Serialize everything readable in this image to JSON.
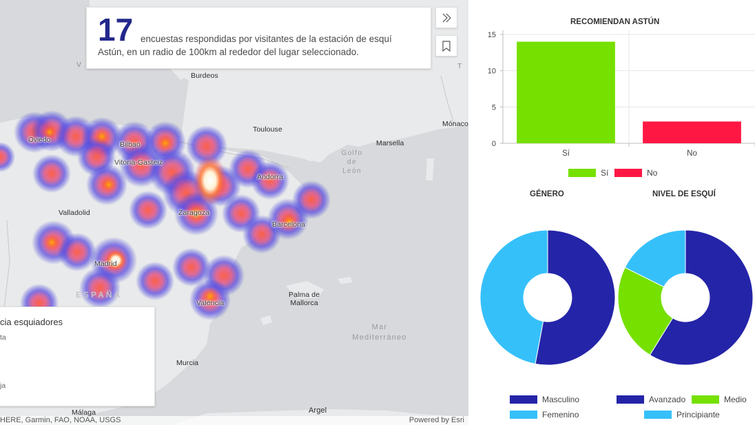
{
  "map": {
    "cities": [
      {
        "id": "burdeos",
        "label": "Burdeos"
      },
      {
        "id": "toulouse",
        "label": "Toulouse"
      },
      {
        "id": "marsella",
        "label": "Marsella"
      },
      {
        "id": "monaco",
        "label": "Mónaco"
      },
      {
        "id": "oviedo",
        "label": "Oviedo"
      },
      {
        "id": "bilbao",
        "label": "Bilbao"
      },
      {
        "id": "vitoria",
        "label": "Vitoria-Gasteiz"
      },
      {
        "id": "andorra",
        "label": "Andorra"
      },
      {
        "id": "valladolid",
        "label": "Valladolid"
      },
      {
        "id": "zaragoza",
        "label": "Zaragoza"
      },
      {
        "id": "barcelona",
        "label": "Barcelona"
      },
      {
        "id": "madrid",
        "label": "Madrid"
      },
      {
        "id": "valencia",
        "label": "València"
      },
      {
        "id": "palma",
        "label": "Palma de\nMallorca"
      },
      {
        "id": "murcia",
        "label": "Murcia"
      },
      {
        "id": "malaga",
        "label": "Málaga"
      },
      {
        "id": "argel",
        "label": "Argel"
      }
    ],
    "sea_labels": {
      "golfo": "Golfo\nde\nLeón",
      "mediterraneo": "Mar\nMediterráneo"
    },
    "country_label": "ESPAÑA",
    "edge_fragments": {
      "left": "V",
      "right": "T"
    },
    "info_card": {
      "count": "17",
      "line1": "encuestas respondidas por visitantes de la estación de esquí",
      "line2": "Astún, en un radio de 100km al rededor del lugar seleccionado."
    },
    "buttons": {
      "expand": "chevron-double-right-icon",
      "bookmark": "bookmark-icon"
    },
    "legend": {
      "title": "cia esquiadores",
      "high_label": "ta",
      "low_label": "ja"
    },
    "attribution_left": "HERE, Garmin, FAO, NOAA, USGS",
    "attribution_right": "Powered by Esri",
    "colors": {
      "land": "#e9eaeb",
      "sea": "#d7d9dc",
      "heat_low": "#3b3fd6",
      "heat_mid": "#f04848",
      "heat_high": "#ffffff"
    }
  },
  "charts": {
    "recommend": {
      "title": "RECOMIENDAN ASTÚN",
      "yticks": [
        "15",
        "10",
        "5",
        "0"
      ],
      "legend": [
        {
          "label": "Sí",
          "color": "#76e000"
        },
        {
          "label": "No",
          "color": "#ff1744"
        }
      ]
    },
    "gender": {
      "title": "GÉNERO",
      "legend": [
        {
          "label": "Masculino",
          "color": "#2424a8"
        },
        {
          "label": "Femenino",
          "color": "#36c0fa"
        }
      ]
    },
    "ski_level": {
      "title": "NIVEL DE ESQUÍ",
      "legend": [
        {
          "label": "Avanzado",
          "color": "#2424a8"
        },
        {
          "label": "Medio",
          "color": "#76e000"
        },
        {
          "label": "Principiante",
          "color": "#36c0fa"
        }
      ]
    }
  },
  "chart_data": [
    {
      "type": "bar",
      "title": "RECOMIENDAN ASTÚN",
      "categories": [
        "Sí",
        "No"
      ],
      "values": [
        14,
        3
      ],
      "colors": [
        "#76e000",
        "#ff1744"
      ],
      "ylim": [
        0,
        15
      ],
      "yticks": [
        0,
        5,
        10,
        15
      ],
      "grid": true,
      "legend_position": "bottom"
    },
    {
      "type": "pie",
      "title": "GÉNERO",
      "labels": [
        "Masculino",
        "Femenino"
      ],
      "values": [
        9,
        8
      ],
      "colors": [
        "#2424a8",
        "#36c0fa"
      ],
      "legend_position": "bottom"
    },
    {
      "type": "pie",
      "title": "NIVEL DE ESQUÍ",
      "labels": [
        "Avanzado",
        "Medio",
        "Principiante"
      ],
      "values": [
        10,
        4,
        3
      ],
      "colors": [
        "#2424a8",
        "#76e000",
        "#36c0fa"
      ],
      "legend_position": "bottom"
    }
  ]
}
